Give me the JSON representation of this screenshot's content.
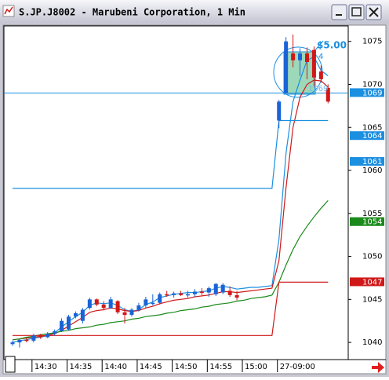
{
  "chart_data": {
    "type": "candlestick",
    "title": "S.JP.J8002 - Marubeni Corporation, 1 Min",
    "categories": [
      null,
      null,
      null,
      "14:30",
      null,
      null,
      null,
      null,
      "14:35",
      null,
      null,
      null,
      null,
      "14:40",
      null,
      null,
      null,
      null,
      "14:45",
      null,
      null,
      null,
      null,
      "14:50",
      null,
      null,
      null,
      null,
      "14:55",
      null,
      null,
      null,
      null,
      "15:00",
      null,
      null,
      null,
      null,
      "27-09:00",
      null,
      null,
      null,
      null,
      null,
      null,
      null
    ],
    "open": [
      1039.8,
      1040.0,
      1040.3,
      1040.2,
      1040.8,
      1040.6,
      1041.0,
      1041.3,
      1041.5,
      1043.0,
      1042.5,
      1044.0,
      1045.0,
      1044.4,
      1044.0,
      1044.8,
      1043.5,
      1043.2,
      1043.8,
      1044.3,
      1044.6,
      1044.6,
      1045.6,
      1045.5,
      1045.7,
      1045.5,
      1045.6,
      1045.9,
      1045.8,
      1045.6,
      1045.8,
      1046.0,
      1045.5,
      null,
      null,
      null,
      null,
      null,
      1065.8,
      1069.0,
      1073.6,
      1072.8,
      1073.6,
      1074.0,
      1071.5,
      1069.6
    ],
    "high": [
      1040.2,
      1040.4,
      1040.5,
      1041.0,
      1041.0,
      1041.2,
      1041.5,
      1042.8,
      1043.2,
      1043.6,
      1044.0,
      1045.2,
      1045.1,
      1044.8,
      1045.3,
      1044.9,
      1044.0,
      1044.0,
      1044.6,
      1045.3,
      1045.6,
      1045.8,
      1046.0,
      1045.9,
      1046.0,
      1046.0,
      1046.2,
      1046.3,
      1046.5,
      1046.9,
      1046.9,
      1046.5,
      1046.0,
      null,
      null,
      null,
      null,
      null,
      1068.2,
      1075.5,
      1075.8,
      1074.2,
      1074.3,
      1074.4,
      1072.2,
      1070.0
    ],
    "low": [
      1039.6,
      1039.4,
      1040.0,
      1040.0,
      1040.4,
      1040.5,
      1040.8,
      1041.2,
      1041.4,
      1042.8,
      1042.2,
      1043.8,
      1044.2,
      1043.8,
      1043.9,
      1043.3,
      1042.2,
      1043.0,
      1043.6,
      1044.0,
      1044.3,
      1044.4,
      1045.3,
      1045.2,
      1045.4,
      1045.2,
      1045.3,
      1045.5,
      1045.3,
      1045.4,
      1045.6,
      1045.3,
      1044.9,
      null,
      null,
      null,
      null,
      null,
      1064.9,
      1069.0,
      1072.0,
      1071.0,
      1070.6,
      1069.6,
      1070.2,
      1067.8
    ],
    "close": [
      1040.0,
      1040.3,
      1040.2,
      1040.8,
      1040.6,
      1041.0,
      1041.3,
      1042.5,
      1043.0,
      1043.4,
      1043.8,
      1045.0,
      1044.4,
      1044.0,
      1045.0,
      1043.5,
      1043.2,
      1043.8,
      1044.3,
      1045.0,
      1044.6,
      1045.6,
      1045.5,
      1045.7,
      1045.5,
      1045.6,
      1045.9,
      1045.8,
      1046.3,
      1046.8,
      1046.7,
      1045.5,
      1045.2,
      null,
      null,
      null,
      null,
      null,
      1068.0,
      1075.0,
      1072.8,
      1073.6,
      1072.6,
      1070.8,
      1070.6,
      1068.0
    ],
    "up_color": "#1a63d6",
    "down_color": "#d01818",
    "lines": [
      {
        "color": "#1b8fe0",
        "values": [
          1040.0,
          1040.2,
          1040.3,
          1040.5,
          1040.6,
          1040.8,
          1041.1,
          1041.8,
          1042.4,
          1043.0,
          1043.5,
          1044.3,
          1044.6,
          1044.5,
          1044.6,
          1044.3,
          1043.8,
          1043.6,
          1043.8,
          1044.4,
          1044.7,
          1045.2,
          1045.4,
          1045.6,
          1045.7,
          1045.8,
          1045.8,
          1045.9,
          1046.0,
          1046.3,
          1046.5,
          1046.4,
          1046.2,
          1046.3,
          1046.4,
          1046.4,
          1046.5,
          1046.6,
          1052.0,
          1062.0,
          1068.0,
          1070.5,
          1072.8,
          1073.2,
          1071.6,
          1071.0
        ]
      },
      {
        "color": "#d01818",
        "values": [
          1040.3,
          1040.4,
          1040.5,
          1040.6,
          1040.7,
          1040.8,
          1041.0,
          1041.4,
          1041.9,
          1042.4,
          1042.9,
          1043.5,
          1043.7,
          1043.8,
          1044.0,
          1043.9,
          1043.7,
          1043.6,
          1043.7,
          1044.0,
          1044.2,
          1044.5,
          1044.7,
          1044.9,
          1045.0,
          1045.1,
          1045.3,
          1045.4,
          1045.5,
          1045.7,
          1045.9,
          1045.9,
          1045.8,
          1045.9,
          1046.0,
          1046.1,
          1046.2,
          1046.3,
          1049.5,
          1058.0,
          1065.0,
          1068.5,
          1070.0,
          1070.5,
          1070.4,
          1069.7
        ]
      },
      {
        "color": "#1a8a1a",
        "values": [
          1040.3,
          1040.4,
          1040.6,
          1040.7,
          1040.9,
          1041.0,
          1041.1,
          1041.3,
          1041.4,
          1041.6,
          1041.7,
          1041.8,
          1042.0,
          1042.1,
          1042.3,
          1042.4,
          1042.5,
          1042.7,
          1042.8,
          1043.0,
          1043.1,
          1043.2,
          1043.4,
          1043.5,
          1043.7,
          1043.8,
          1043.9,
          1044.1,
          1044.2,
          1044.4,
          1044.5,
          1044.6,
          1044.8,
          1044.9,
          1045.1,
          1045.2,
          1045.3,
          1045.5,
          1047.0,
          1049.0,
          1050.8,
          1052.3,
          1053.5,
          1054.6,
          1055.6,
          1056.5
        ]
      },
      {
        "color": "#1b8fe0",
        "values": [
          1057.9,
          1057.9,
          1057.9,
          1057.9,
          1057.9,
          1057.9,
          1057.9,
          1057.9,
          1057.9,
          1057.9,
          1057.9,
          1057.9,
          1057.9,
          1057.9,
          1057.9,
          1057.9,
          1057.9,
          1057.9,
          1057.9,
          1057.9,
          1057.9,
          1057.9,
          1057.9,
          1057.9,
          1057.9,
          1057.9,
          1057.9,
          1057.9,
          1057.9,
          1057.9,
          1057.9,
          1057.9,
          1057.9,
          1057.9,
          1057.9,
          1057.9,
          1057.9,
          1057.9,
          1065.8,
          1065.8,
          1065.8,
          1065.8,
          1065.8,
          1065.8,
          1065.8,
          1065.8
        ]
      },
      {
        "color": "#d01818",
        "values": [
          1040.8,
          1040.8,
          1040.8,
          1040.8,
          1040.8,
          1040.8,
          1040.8,
          1040.8,
          1040.8,
          1040.8,
          1040.8,
          1040.8,
          1040.8,
          1040.8,
          1040.8,
          1040.8,
          1040.8,
          1040.8,
          1040.8,
          1040.8,
          1040.8,
          1040.8,
          1040.8,
          1040.8,
          1040.8,
          1040.8,
          1040.8,
          1040.8,
          1040.8,
          1040.8,
          1040.8,
          1040.8,
          1040.8,
          1040.8,
          1040.8,
          1040.8,
          1040.8,
          1040.8,
          1047.0,
          1047.0,
          1047.0,
          1047.0,
          1047.0,
          1047.0,
          1047.0,
          1047.0
        ]
      }
    ],
    "hline": 1069,
    "hline_color": "#1b8fe0",
    "ylim": [
      1038.0,
      1076.8
    ],
    "yticks": [
      1040,
      1045,
      1050,
      1055,
      1060,
      1065,
      1070,
      1075
    ],
    "markers": [
      {
        "value": 1069,
        "color": "#1b8fe0",
        "text_color": "#ffffff"
      },
      {
        "value": 1064,
        "color": "#1b8fe0",
        "text_color": "#ffffff"
      },
      {
        "value": 1054,
        "color": "#1a8a1a",
        "text_color": "#ffffff"
      },
      {
        "value": 1061,
        "color": "#1b8fe0",
        "text_color": "#ffffff"
      },
      {
        "value": 1047,
        "color": "#d01818",
        "text_color": "#ffffff"
      }
    ],
    "annotations": [
      "$5.00",
      "4",
      "1069"
    ]
  }
}
